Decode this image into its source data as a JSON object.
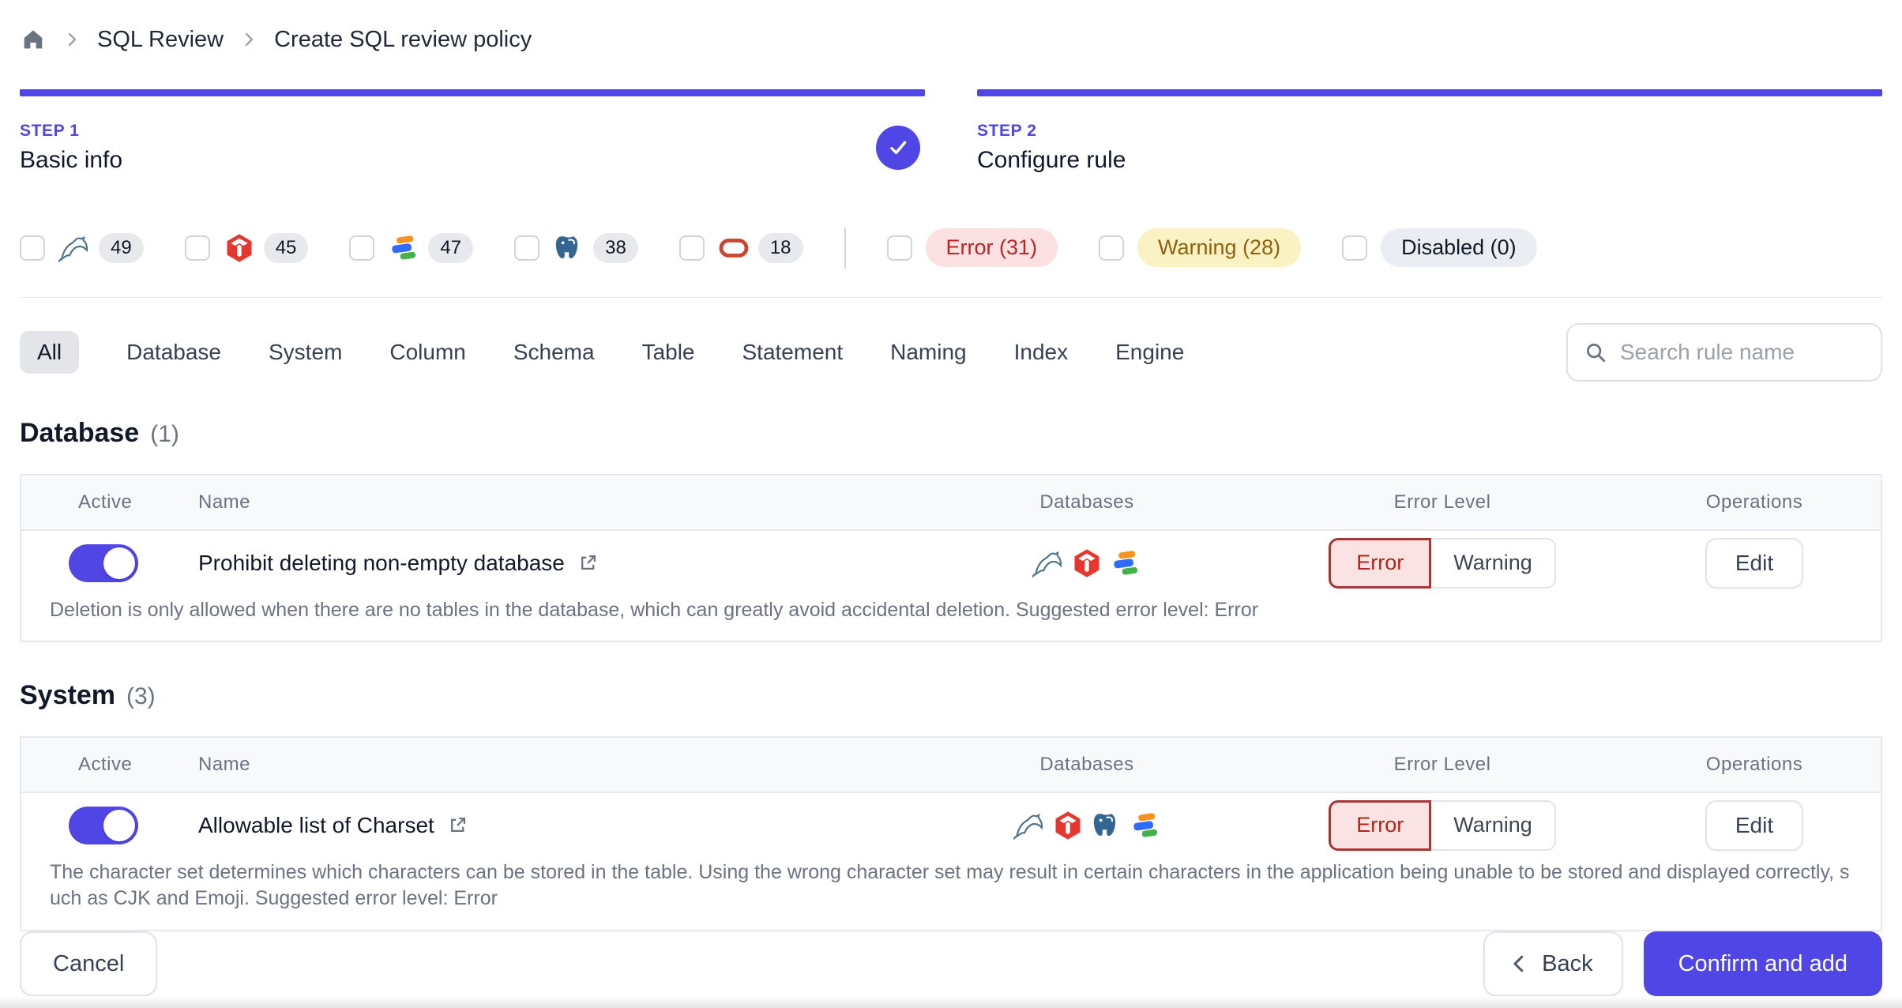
{
  "breadcrumb": {
    "items": [
      "SQL Review",
      "Create SQL review policy"
    ]
  },
  "steps": [
    {
      "label": "STEP 1",
      "title": "Basic info",
      "completed": true
    },
    {
      "label": "STEP 2",
      "title": "Configure rule",
      "completed": false
    }
  ],
  "filters": {
    "engines": [
      {
        "engine": "mysql",
        "count": "49"
      },
      {
        "engine": "tidb",
        "count": "45"
      },
      {
        "engine": "oceanbase",
        "count": "47"
      },
      {
        "engine": "postgres",
        "count": "38"
      },
      {
        "engine": "oracle",
        "count": "18"
      }
    ],
    "levels": [
      {
        "id": "error",
        "label": "Error (31)"
      },
      {
        "id": "warning",
        "label": "Warning (28)"
      },
      {
        "id": "disabled",
        "label": "Disabled (0)"
      }
    ]
  },
  "tabs": {
    "items": [
      "All",
      "Database",
      "System",
      "Column",
      "Schema",
      "Table",
      "Statement",
      "Naming",
      "Index",
      "Engine"
    ],
    "active": "All"
  },
  "search": {
    "placeholder": "Search rule name"
  },
  "table_headers": {
    "active": "Active",
    "name": "Name",
    "databases": "Databases",
    "error_level": "Error Level",
    "operations": "Operations"
  },
  "sections": [
    {
      "title": "Database",
      "count": "(1)",
      "rows": [
        {
          "name": "Prohibit deleting non-empty database",
          "active": true,
          "databases": [
            "mysql",
            "tidb",
            "oceanbase"
          ],
          "levels": [
            "Error",
            "Warning"
          ],
          "selected_level": "Error",
          "operation": "Edit",
          "description": "Deletion is only allowed when there are no tables in the database, which can greatly avoid accidental deletion. Suggested error level: Error"
        }
      ]
    },
    {
      "title": "System",
      "count": "(3)",
      "rows": [
        {
          "name": "Allowable list of Charset",
          "active": true,
          "databases": [
            "mysql",
            "tidb",
            "postgres",
            "oceanbase"
          ],
          "levels": [
            "Error",
            "Warning"
          ],
          "selected_level": "Error",
          "operation": "Edit",
          "description": "The character set determines which characters can be stored in the table. Using the wrong character set may result in certain characters in the application being unable to be stored and displayed correctly, such as CJK and Emoji. Suggested error level: Error"
        }
      ]
    }
  ],
  "footer": {
    "cancel": "Cancel",
    "back": "Back",
    "confirm": "Confirm and add"
  },
  "colors": {
    "accent": "#4f46e5",
    "error_text": "#b42318",
    "error_bg": "#fae3e3",
    "warning_text": "#8f5f0e",
    "warning_bg": "#faf2c3",
    "disabled_bg": "#eaedf1",
    "border": "#e5e7eb"
  }
}
